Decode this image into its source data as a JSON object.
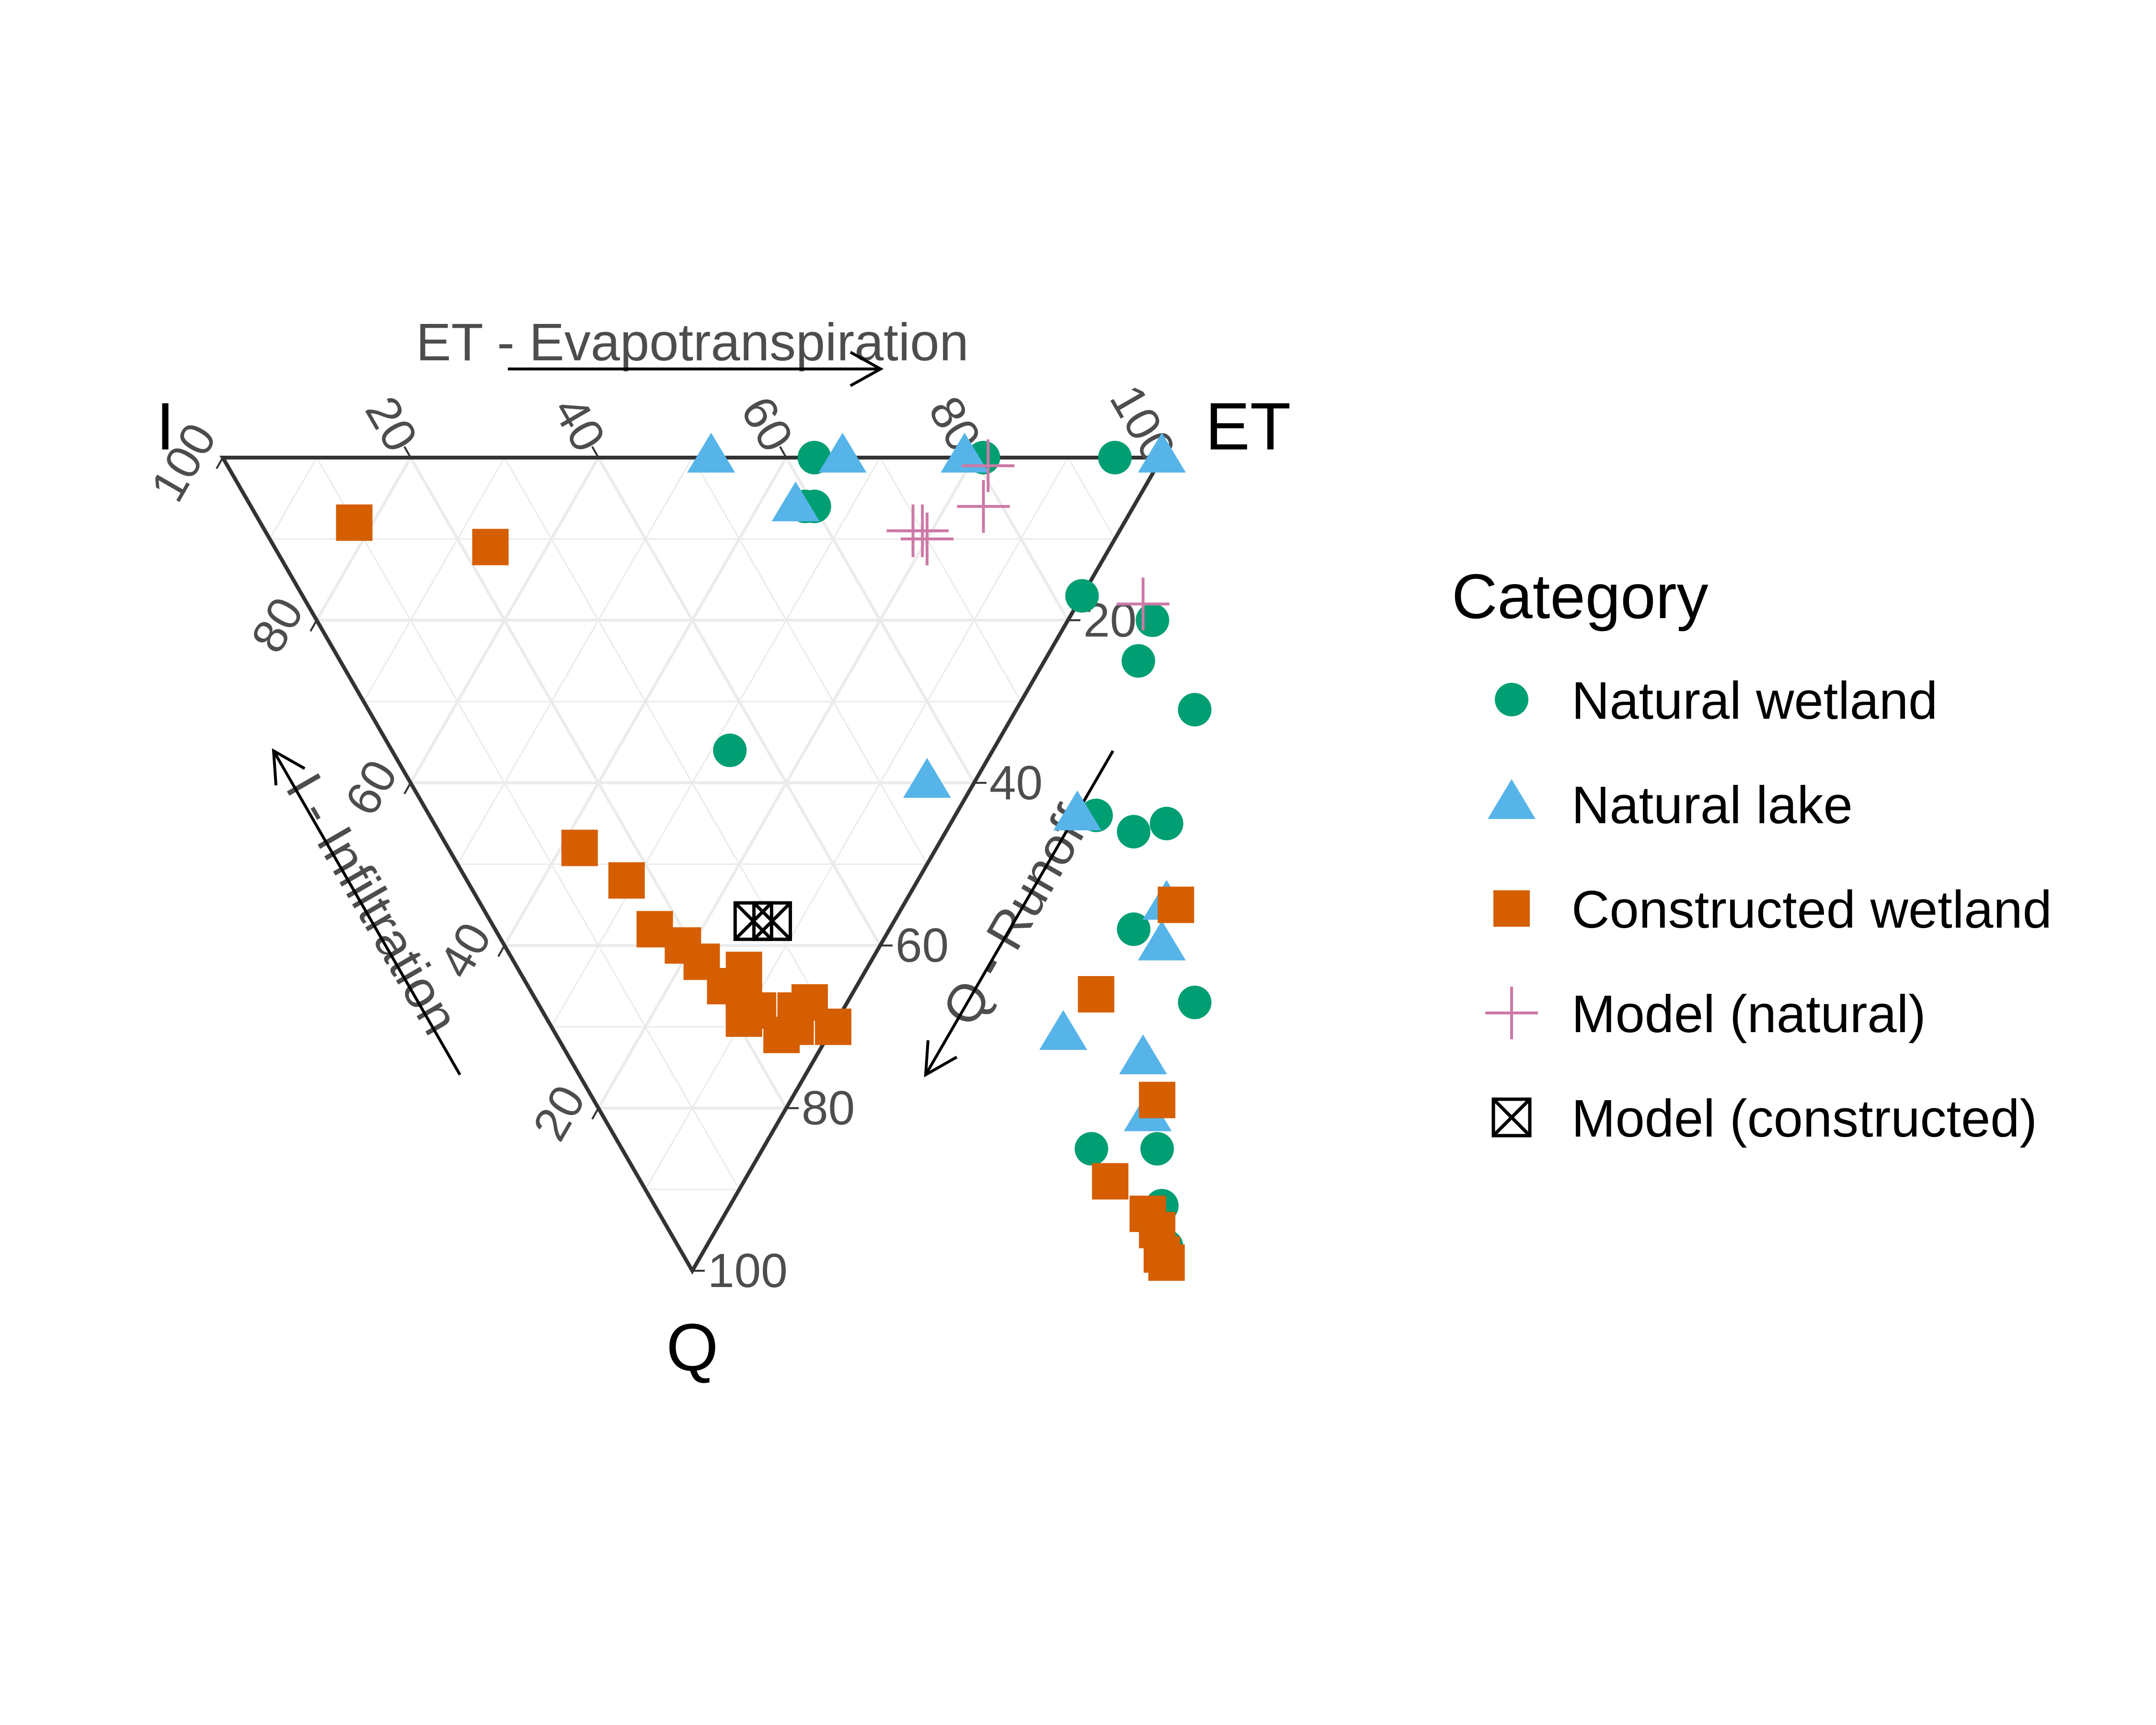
{
  "chart_data": {
    "type": "ternary-scatter",
    "vertex_labels": {
      "left": "I",
      "right": "ET",
      "bottom": "Q"
    },
    "axes": {
      "ET": {
        "title": "ET - Evapotranspiration",
        "ticks": [
          "20",
          "40",
          "60",
          "80",
          "100"
        ]
      },
      "Q": {
        "title": "Q - Runoff",
        "ticks": [
          "20",
          "40",
          "60",
          "80",
          "100"
        ]
      },
      "I": {
        "title": "I - Infiltration",
        "ticks": [
          "20",
          "40",
          "60",
          "80",
          "100"
        ]
      }
    },
    "grid": true,
    "legend": {
      "title": "Category",
      "position": "right",
      "entries": [
        {
          "key": "natural_wetland",
          "label": "Natural wetland",
          "shape": "circle",
          "color": "#009E73"
        },
        {
          "key": "natural_lake",
          "label": "Natural lake",
          "shape": "triangle",
          "color": "#56B4E9"
        },
        {
          "key": "constructed_wetland",
          "label": "Constructed wetland",
          "shape": "square",
          "color": "#D55E00"
        },
        {
          "key": "model_natural",
          "label": "Model (natural)",
          "shape": "plus",
          "color": "#CC79A7"
        },
        {
          "key": "model_constructed",
          "label": "Model (constructed)",
          "shape": "boxcross",
          "color": "#000000"
        }
      ]
    },
    "series": [
      {
        "name": "Natural wetland",
        "points": [
          {
            "ET": 63,
            "Q": 0
          },
          {
            "ET": 81,
            "Q": 0
          },
          {
            "ET": 95,
            "Q": 0
          },
          {
            "ET": 59,
            "Q": 6
          },
          {
            "ET": 60,
            "Q": 6
          },
          {
            "ET": 89,
            "Q": 20
          },
          {
            "ET": 83,
            "Q": 17
          },
          {
            "ET": 85,
            "Q": 25
          },
          {
            "ET": 88,
            "Q": 31
          },
          {
            "ET": 36,
            "Q": 36
          },
          {
            "ET": 78,
            "Q": 45
          },
          {
            "ET": 74,
            "Q": 46
          },
          {
            "ET": 71,
            "Q": 44
          },
          {
            "ET": 68,
            "Q": 58
          },
          {
            "ET": 70,
            "Q": 67
          },
          {
            "ET": 57,
            "Q": 85
          },
          {
            "ET": 50,
            "Q": 85
          },
          {
            "ET": 54,
            "Q": 92
          },
          {
            "ET": 52,
            "Q": 97
          }
        ]
      },
      {
        "name": "Natural lake",
        "points": [
          {
            "ET": 52,
            "Q": 0
          },
          {
            "ET": 66,
            "Q": 0
          },
          {
            "ET": 79,
            "Q": 0
          },
          {
            "ET": 100,
            "Q": 0
          },
          {
            "ET": 58,
            "Q": 6
          },
          {
            "ET": 55,
            "Q": 40
          },
          {
            "ET": 69,
            "Q": 44
          },
          {
            "ET": 70,
            "Q": 60
          },
          {
            "ET": 73,
            "Q": 55
          },
          {
            "ET": 54,
            "Q": 71
          },
          {
            "ET": 61,
            "Q": 74
          },
          {
            "ET": 58,
            "Q": 81
          }
        ]
      },
      {
        "name": "Constructed wetland",
        "points": [
          {
            "ET": 10,
            "Q": 8
          },
          {
            "ET": 23,
            "Q": 11
          },
          {
            "ET": 14,
            "Q": 48
          },
          {
            "ET": 17,
            "Q": 52
          },
          {
            "ET": 17,
            "Q": 58
          },
          {
            "ET": 19,
            "Q": 60
          },
          {
            "ET": 20,
            "Q": 62
          },
          {
            "ET": 21,
            "Q": 65
          },
          {
            "ET": 22,
            "Q": 67
          },
          {
            "ET": 21,
            "Q": 69
          },
          {
            "ET": 24,
            "Q": 63
          },
          {
            "ET": 23,
            "Q": 68
          },
          {
            "ET": 24,
            "Q": 71
          },
          {
            "ET": 26,
            "Q": 70
          },
          {
            "ET": 29,
            "Q": 67
          },
          {
            "ET": 27,
            "Q": 68
          },
          {
            "ET": 30,
            "Q": 70
          },
          {
            "ET": 60,
            "Q": 66
          },
          {
            "ET": 74,
            "Q": 55
          },
          {
            "ET": 60,
            "Q": 79
          },
          {
            "ET": 50,
            "Q": 89
          },
          {
            "ET": 52,
            "Q": 93
          },
          {
            "ET": 52,
            "Q": 95
          },
          {
            "ET": 51,
            "Q": 98
          },
          {
            "ET": 51,
            "Q": 99
          }
        ]
      },
      {
        "name": "Model (natural)",
        "points": [
          {
            "ET": 81,
            "Q": 1
          },
          {
            "ET": 78,
            "Q": 6
          },
          {
            "ET": 70,
            "Q": 10
          },
          {
            "ET": 70,
            "Q": 9
          },
          {
            "ET": 69,
            "Q": 9
          },
          {
            "ET": 89,
            "Q": 18
          }
        ]
      },
      {
        "name": "Model (constructed)",
        "points": [
          {
            "ET": 28,
            "Q": 57
          },
          {
            "ET": 30,
            "Q": 57
          }
        ]
      }
    ]
  }
}
